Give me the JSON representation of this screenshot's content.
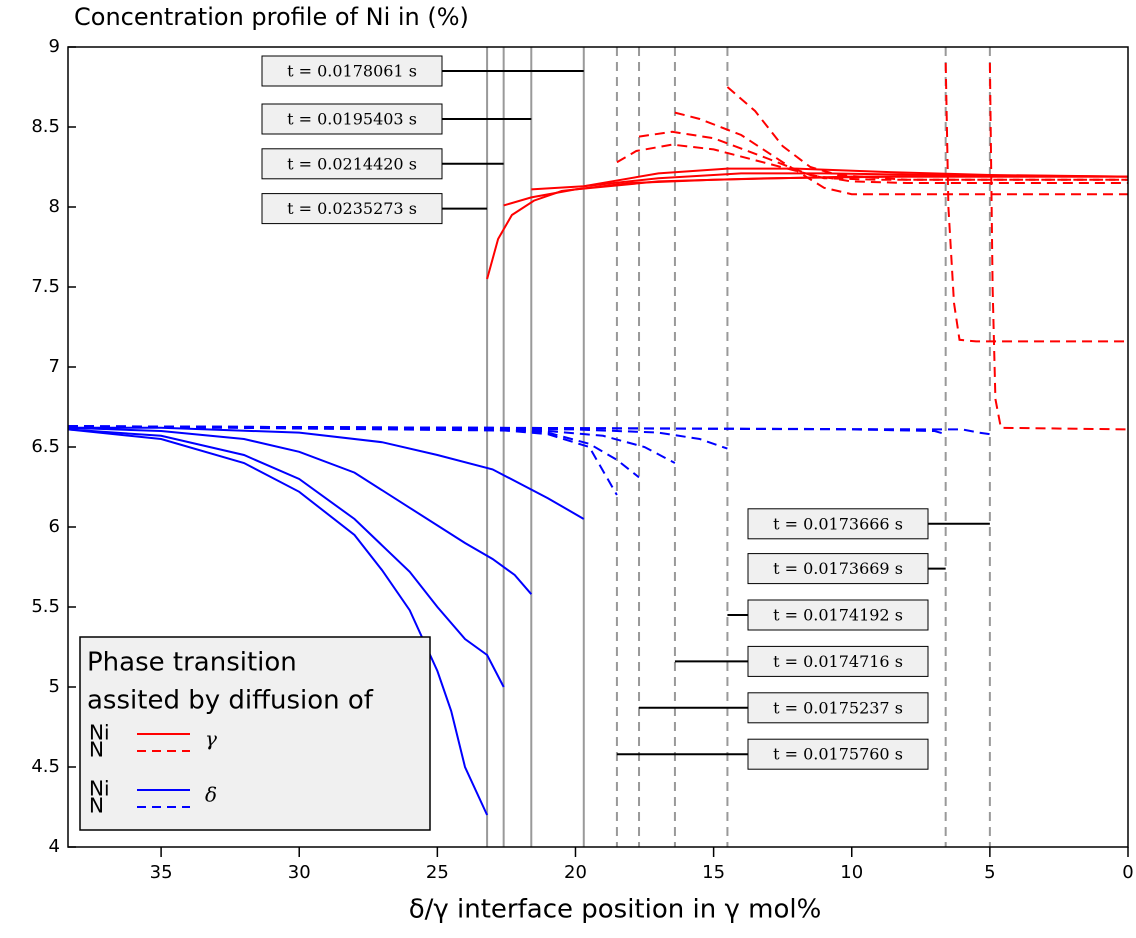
{
  "chart_data": {
    "type": "line",
    "title": "Concentration profile of Ni in (%)",
    "x_label": "δ/γ interface position in γ mol%",
    "xlim": [
      38.37,
      0
    ],
    "ylim": [
      4,
      9
    ],
    "xticks": [
      35,
      30,
      25,
      20,
      15,
      10,
      5,
      0
    ],
    "yticks": [
      4,
      4.5,
      5,
      5.5,
      6,
      6.5,
      7,
      7.5,
      8,
      8.5,
      9
    ],
    "vline_color": "#999999",
    "vlines": [
      {
        "x": 23.2,
        "dash": false
      },
      {
        "x": 22.6,
        "dash": false
      },
      {
        "x": 21.6,
        "dash": false
      },
      {
        "x": 19.7,
        "dash": false
      },
      {
        "x": 18.5,
        "dash": true
      },
      {
        "x": 17.7,
        "dash": true
      },
      {
        "x": 16.4,
        "dash": true
      },
      {
        "x": 14.5,
        "dash": true
      },
      {
        "x": 6.6,
        "dash": true
      },
      {
        "x": 5.0,
        "dash": true
      }
    ],
    "series": [
      {
        "color": "#ff0000",
        "dash": false,
        "x": [
          23.2,
          22.8,
          22.3,
          21.5,
          20.5,
          18,
          15,
          10,
          5,
          0
        ],
        "values": [
          7.55,
          7.8,
          7.95,
          8.04,
          8.1,
          8.15,
          8.17,
          8.19,
          8.19,
          8.19
        ]
      },
      {
        "color": "#ff0000",
        "dash": false,
        "x": [
          22.6,
          21.6,
          20,
          17,
          13,
          8,
          0
        ],
        "values": [
          8.01,
          8.06,
          8.11,
          8.16,
          8.18,
          8.19,
          8.19
        ]
      },
      {
        "color": "#ff0000",
        "dash": false,
        "x": [
          21.6,
          19.7,
          17,
          14,
          11,
          7,
          0
        ],
        "values": [
          8.11,
          8.13,
          8.18,
          8.21,
          8.21,
          8.2,
          8.19
        ]
      },
      {
        "color": "#ff0000",
        "dash": false,
        "x": [
          19.7,
          17,
          14.5,
          12,
          9,
          5,
          0
        ],
        "values": [
          8.13,
          8.21,
          8.24,
          8.24,
          8.22,
          8.2,
          8.19
        ]
      },
      {
        "color": "#ff0000",
        "dash": true,
        "x": [
          18.5,
          17.8,
          16.5,
          15,
          13,
          11,
          9,
          5,
          0
        ],
        "values": [
          8.28,
          8.35,
          8.39,
          8.36,
          8.27,
          8.18,
          8.17,
          8.17,
          8.17
        ]
      },
      {
        "color": "#ff0000",
        "dash": true,
        "x": [
          17.7,
          16.5,
          15,
          13,
          11.5,
          10,
          8,
          0
        ],
        "values": [
          8.44,
          8.47,
          8.43,
          8.3,
          8.2,
          8.16,
          8.15,
          8.15
        ]
      },
      {
        "color": "#ff0000",
        "dash": true,
        "x": [
          16.4,
          15.5,
          14,
          12.5,
          11,
          10,
          0
        ],
        "values": [
          8.59,
          8.55,
          8.45,
          8.28,
          8.12,
          8.08,
          8.08
        ]
      },
      {
        "color": "#ff0000",
        "dash": true,
        "x": [
          14.5,
          13.5,
          12.5,
          11.5,
          10.5,
          8,
          0
        ],
        "values": [
          8.75,
          8.6,
          8.38,
          8.25,
          8.2,
          8.17,
          8.17
        ]
      },
      {
        "color": "#ff0000",
        "dash": true,
        "x": [
          6.6,
          6.5,
          6.3,
          6.1,
          5.5,
          0
        ],
        "values": [
          8.9,
          8.0,
          7.4,
          7.17,
          7.16,
          7.16
        ]
      },
      {
        "color": "#ff0000",
        "dash": true,
        "x": [
          5.0,
          4.9,
          4.8,
          4.6,
          0
        ],
        "values": [
          8.9,
          7.5,
          6.8,
          6.62,
          6.61
        ]
      },
      {
        "color": "#0000ff",
        "dash": false,
        "x": [
          38.37,
          35,
          30,
          27,
          25,
          23,
          21,
          19.7
        ],
        "values": [
          6.62,
          6.62,
          6.59,
          6.53,
          6.45,
          6.36,
          6.18,
          6.05
        ]
      },
      {
        "color": "#0000ff",
        "dash": false,
        "x": [
          38.37,
          35,
          32,
          30,
          28,
          26,
          24,
          23,
          22.2,
          21.6
        ],
        "values": [
          6.62,
          6.6,
          6.55,
          6.47,
          6.34,
          6.12,
          5.9,
          5.8,
          5.7,
          5.58
        ]
      },
      {
        "color": "#0000ff",
        "dash": false,
        "x": [
          38.37,
          35,
          32,
          30,
          28,
          26,
          25,
          24,
          23.2,
          22.6
        ],
        "values": [
          6.61,
          6.57,
          6.45,
          6.3,
          6.05,
          5.72,
          5.5,
          5.3,
          5.2,
          5.0
        ]
      },
      {
        "color": "#0000ff",
        "dash": false,
        "x": [
          38.37,
          35,
          32,
          30,
          28,
          27,
          26,
          25,
          24.5,
          24,
          23.2
        ],
        "values": [
          6.61,
          6.55,
          6.4,
          6.22,
          5.95,
          5.73,
          5.48,
          5.1,
          4.85,
          4.5,
          4.2
        ]
      },
      {
        "color": "#0000ff",
        "dash": true,
        "x": [
          38.37,
          25,
          23,
          21,
          19.5,
          18.5
        ],
        "values": [
          6.63,
          6.62,
          6.61,
          6.58,
          6.5,
          6.2
        ]
      },
      {
        "color": "#0000ff",
        "dash": true,
        "x": [
          38.37,
          23,
          21,
          19.5,
          18.5,
          17.7
        ],
        "values": [
          6.63,
          6.62,
          6.59,
          6.52,
          6.42,
          6.31
        ]
      },
      {
        "color": "#0000ff",
        "dash": true,
        "x": [
          38.37,
          21,
          19,
          17.5,
          16.4
        ],
        "values": [
          6.63,
          6.6,
          6.57,
          6.5,
          6.4
        ]
      },
      {
        "color": "#0000ff",
        "dash": true,
        "x": [
          38.37,
          20,
          17,
          15.5,
          14.5
        ],
        "values": [
          6.63,
          6.61,
          6.59,
          6.55,
          6.49
        ]
      },
      {
        "color": "#0000ff",
        "dash": true,
        "x": [
          38.37,
          10,
          7,
          6.6
        ],
        "values": [
          6.63,
          6.61,
          6.6,
          6.58
        ]
      },
      {
        "color": "#0000ff",
        "dash": true,
        "x": [
          38.37,
          7,
          6,
          5.4,
          5.0
        ],
        "values": [
          6.63,
          6.61,
          6.61,
          6.59,
          6.58
        ]
      }
    ],
    "annotations": [
      {
        "text": "t = 0.0178061 s",
        "x": 19.7,
        "y": 8.85
      },
      {
        "text": "t = 0.0195403 s",
        "x": 21.6,
        "y": 8.55
      },
      {
        "text": "t = 0.0214420 s",
        "x": 22.6,
        "y": 8.27
      },
      {
        "text": "t = 0.0235273 s",
        "x": 23.2,
        "y": 7.99
      },
      {
        "text": "t = 0.0173666 s",
        "x": 5.0,
        "y": 6.02
      },
      {
        "text": "t = 0.0173669 s",
        "x": 6.6,
        "y": 5.74
      },
      {
        "text": "t = 0.0174192 s",
        "x": 14.5,
        "y": 5.45
      },
      {
        "text": "t = 0.0174716 s",
        "x": 16.4,
        "y": 5.16
      },
      {
        "text": "t = 0.0175237 s",
        "x": 17.7,
        "y": 4.87
      },
      {
        "text": "t = 0.0175760 s",
        "x": 18.5,
        "y": 4.58
      }
    ],
    "legend": {
      "title": [
        "Phase transition",
        "assited by diffusion of"
      ],
      "groups": [
        {
          "phase": "γ",
          "color": "#ff0000",
          "entries": [
            {
              "name": "Ni",
              "dash": false
            },
            {
              "name": "N",
              "dash": true
            }
          ]
        },
        {
          "phase": "δ",
          "color": "#0000ff",
          "entries": [
            {
              "name": "Ni",
              "dash": false
            },
            {
              "name": "N",
              "dash": true
            }
          ]
        }
      ]
    }
  }
}
